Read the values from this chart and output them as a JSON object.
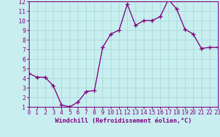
{
  "x": [
    0,
    1,
    2,
    3,
    4,
    5,
    6,
    7,
    8,
    9,
    10,
    11,
    12,
    13,
    14,
    15,
    16,
    17,
    18,
    19,
    20,
    21,
    22,
    23
  ],
  "y": [
    4.5,
    4.1,
    4.1,
    3.2,
    1.2,
    1.0,
    1.5,
    2.6,
    2.7,
    7.2,
    8.6,
    9.0,
    11.7,
    9.5,
    10.0,
    10.0,
    10.4,
    12.2,
    11.2,
    9.1,
    8.6,
    7.1,
    7.2,
    7.2
  ],
  "line_color": "#800080",
  "marker": "+",
  "marker_size": 4,
  "background_color": "#c8eef0",
  "grid_color": "#a8d8d8",
  "xlabel": "Windchill (Refroidissement éolien,°C)",
  "xlim": [
    0,
    23
  ],
  "ylim": [
    1,
    12
  ],
  "xticks": [
    0,
    1,
    2,
    3,
    4,
    5,
    6,
    7,
    8,
    9,
    10,
    11,
    12,
    13,
    14,
    15,
    16,
    17,
    18,
    19,
    20,
    21,
    22,
    23
  ],
  "yticks": [
    1,
    2,
    3,
    4,
    5,
    6,
    7,
    8,
    9,
    10,
    11,
    12
  ],
  "xlabel_fontsize": 6.5,
  "tick_fontsize": 6,
  "line_width": 1.0
}
